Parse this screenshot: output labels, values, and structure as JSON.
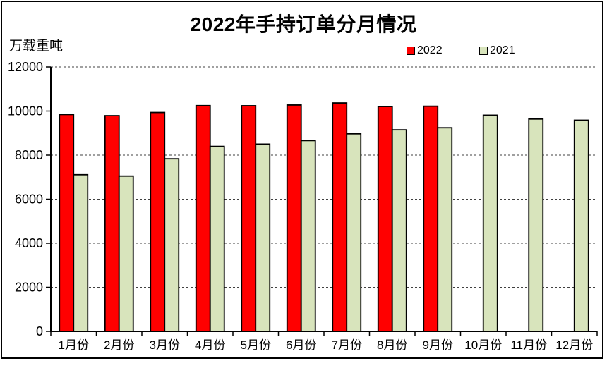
{
  "title": "2022年手持订单分月情况",
  "y_axis_label": "万载重吨",
  "legend": [
    {
      "label": "2022",
      "color": "#FF0000"
    },
    {
      "label": "2021",
      "color": "#D8E4BC"
    }
  ],
  "chart_data": {
    "type": "bar",
    "title": "2022年手持订单分月情况",
    "xlabel": "",
    "ylabel": "万载重吨",
    "categories": [
      "1月份",
      "2月份",
      "3月份",
      "4月份",
      "5月份",
      "6月份",
      "7月份",
      "8月份",
      "9月份",
      "10月份",
      "11月份",
      "12月份"
    ],
    "series": [
      {
        "name": "2022",
        "color": "#FF0000",
        "values": [
          9843,
          9790,
          9935,
          10247,
          10241,
          10274,
          10366,
          10206,
          10219,
          null,
          null,
          null
        ]
      },
      {
        "name": "2021",
        "color": "#D8E4BC",
        "values": [
          7111,
          7049,
          7834,
          8396,
          8499,
          8660,
          8967,
          9147,
          9240,
          9810,
          9639,
          9584
        ]
      }
    ],
    "ylim": [
      0,
      12000
    ],
    "yticks": [
      0,
      2000,
      4000,
      6000,
      8000,
      10000,
      12000
    ],
    "grid": "horizontal-dashed",
    "legend_position": "top-right",
    "bar_outline_color": "#000000"
  }
}
